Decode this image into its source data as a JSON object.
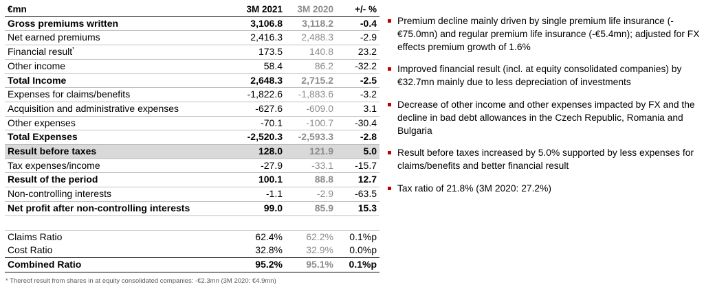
{
  "table": {
    "headers": {
      "label": "€mn",
      "current": "3M 2021",
      "previous": "3M 2020",
      "change": "+/- %"
    },
    "rows": [
      {
        "label": "Gross premiums written",
        "current": "3,106.8",
        "previous": "3,118.2",
        "change": "-0.4",
        "bold": true
      },
      {
        "label": "Net earned premiums",
        "current": "2,416.3",
        "previous": "2,488.3",
        "change": "-2.9"
      },
      {
        "label": "Financial result",
        "sup": "*",
        "current": "173.5",
        "previous": "140.8",
        "change": "23.2"
      },
      {
        "label": "Other income",
        "current": "58.4",
        "previous": "86.2",
        "change": "-32.2"
      },
      {
        "label": "Total Income",
        "current": "2,648.3",
        "previous": "2,715.2",
        "change": "-2.5",
        "bold": true
      },
      {
        "label": "Expenses for claims/benefits",
        "current": "-1,822.6",
        "previous": "-1,883.6",
        "change": "-3.2"
      },
      {
        "label": "Acquisition and administrative expenses",
        "current": "-627.6",
        "previous": "-609.0",
        "change": "3.1"
      },
      {
        "label": "Other expenses",
        "current": "-70.1",
        "previous": "-100.7",
        "change": "-30.4"
      },
      {
        "label": "Total Expenses",
        "current": "-2,520.3",
        "previous": "-2,593.3",
        "change": "-2.8",
        "bold": true
      },
      {
        "label": "Result before taxes",
        "current": "128.0",
        "previous": "121.9",
        "change": "5.0",
        "bold": true,
        "highlight": true
      },
      {
        "label": "Tax expenses/income",
        "current": "-27.9",
        "previous": "-33.1",
        "change": "-15.7"
      },
      {
        "label": "Result of the period",
        "current": "100.1",
        "previous": "88.8",
        "change": "12.7",
        "bold": true
      },
      {
        "label": "Non-controlling interests",
        "current": "-1.1",
        "previous": "-2.9",
        "change": "-63.5"
      },
      {
        "label": "Net profit after non-controlling interests",
        "current": "99.0",
        "previous": "85.9",
        "change": "15.3",
        "bold": true
      }
    ],
    "ratios": [
      {
        "label": "Claims Ratio",
        "current": "62.4%",
        "previous": "62.2%",
        "change": "0.1%p"
      },
      {
        "label": "Cost Ratio",
        "current": "32.8%",
        "previous": "32.9%",
        "change": "0.0%p"
      },
      {
        "label": "Combined Ratio",
        "current": "95.2%",
        "previous": "95.1%",
        "change": "0.1%p",
        "bold": true
      }
    ]
  },
  "footnote": "* Thereof result from shares in at equity consolidated companies: -€2.3mn (3M 2020: €4.9mn)",
  "bullets": [
    "Premium decline mainly driven by single premium life insurance (-€75.0mn) and regular premium life insurance (-€5.4mn); adjusted for FX effects premium growth of 1.6%",
    "Improved financial result (incl. at equity consolidated companies) by €32.7mn mainly due to less depreciation of investments",
    "Decrease of other income and other expenses impacted by FX and the decline in bad debt allowances in the Czech Republic, Romania and Bulgaria",
    "Result before taxes increased by 5.0% supported by less expenses for claims/benefits and better financial result",
    "Tax ratio of 21.8% (3M 2020: 27.2%)"
  ],
  "colors": {
    "bullet_marker": "#c00000",
    "highlight_row": "#d9d9d9",
    "previous_year_text": "#8c8c8c"
  }
}
